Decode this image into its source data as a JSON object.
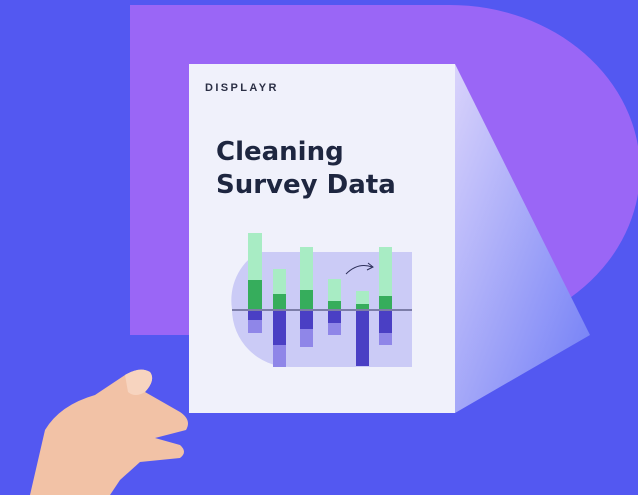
{
  "brand": "DISPLAYR",
  "title": {
    "line1": "Cleaning",
    "line2": "Survey Data"
  }
}
